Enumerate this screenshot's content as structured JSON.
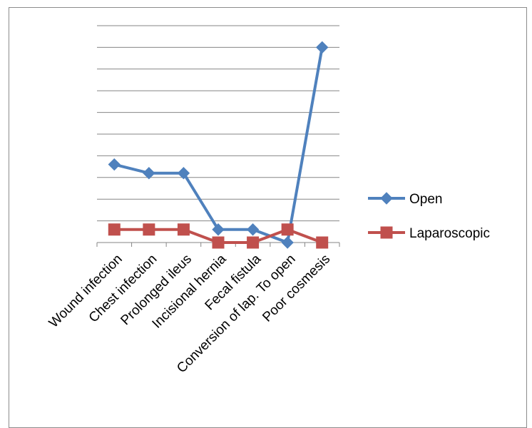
{
  "chart_data": {
    "type": "line",
    "categories": [
      "Wound infection",
      "Chest infection",
      "Prolonged ileus",
      "Incisional hernia",
      "Fecal fistula",
      "Conversion of lap. To open",
      "Poor cosmesis"
    ],
    "series": [
      {
        "name": "Open",
        "values": [
          18,
          16,
          16,
          3,
          3,
          0,
          45
        ],
        "color": "#4f81bd",
        "marker": "diamond"
      },
      {
        "name": "Laparoscopic",
        "values": [
          3,
          3,
          3,
          0,
          0,
          3,
          0
        ],
        "color": "#c0504d",
        "marker": "square"
      }
    ],
    "ylim": [
      0,
      50
    ],
    "y_gridlines": [
      5,
      10,
      15,
      20,
      25,
      30,
      35,
      40,
      45,
      50
    ],
    "y_tick_labels_shown": false,
    "grid": true,
    "legend_position": "right"
  }
}
